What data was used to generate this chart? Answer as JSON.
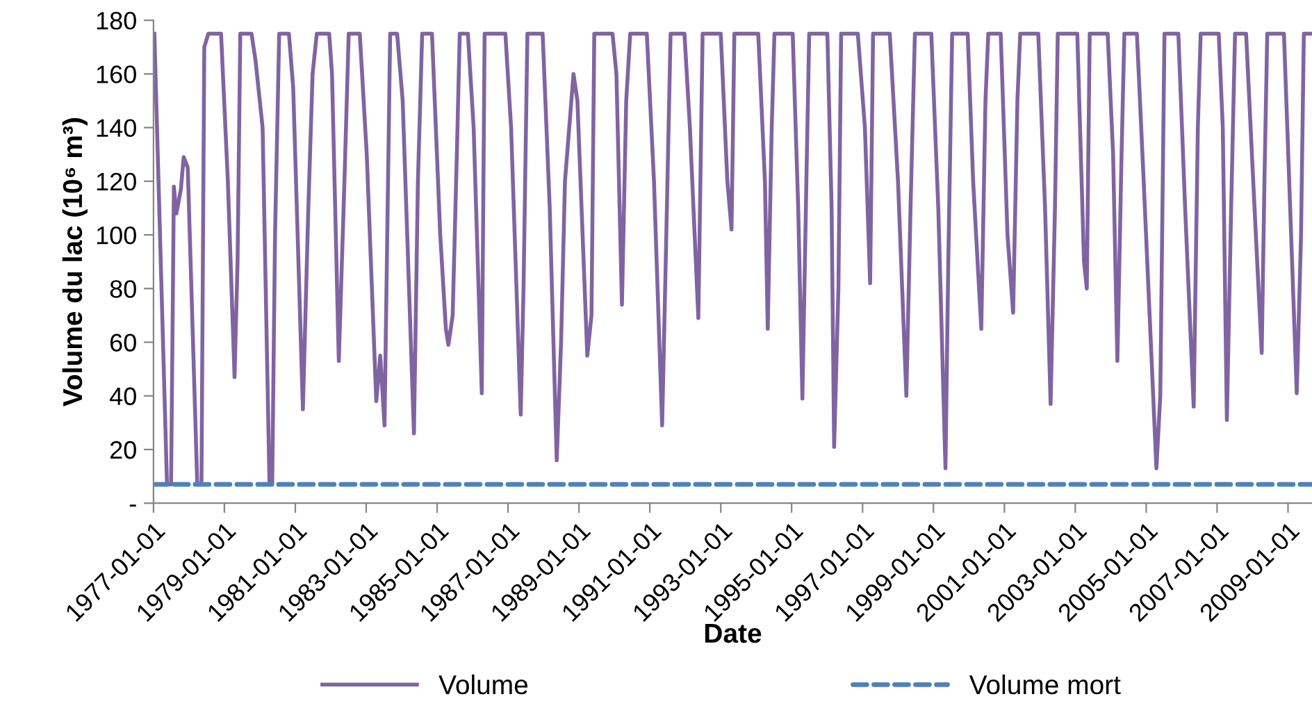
{
  "chart_data": {
    "type": "line",
    "xlabel": "Date",
    "ylabel": "Volume du lac (10⁶ m³)",
    "xlim": [
      "1977-01-01",
      "2009-09-05"
    ],
    "xticks": [
      {
        "value": "1977-01-01",
        "label": "1977-01-01"
      },
      {
        "value": "1979-01-01",
        "label": "1979-01-01"
      },
      {
        "value": "1981-01-01",
        "label": "1981-01-01"
      },
      {
        "value": "1983-01-01",
        "label": "1983-01-01"
      },
      {
        "value": "1985-01-01",
        "label": "1985-01-01"
      },
      {
        "value": "1987-01-01",
        "label": "1987-01-01"
      },
      {
        "value": "1989-01-01",
        "label": "1989-01-01"
      },
      {
        "value": "1991-01-01",
        "label": "1991-01-01"
      },
      {
        "value": "1993-01-01",
        "label": "1993-01-01"
      },
      {
        "value": "1995-01-01",
        "label": "1995-01-01"
      },
      {
        "value": "1997-01-01",
        "label": "1997-01-01"
      },
      {
        "value": "1999-01-01",
        "label": "1999-01-01"
      },
      {
        "value": "2001-01-01",
        "label": "2001-01-01"
      },
      {
        "value": "2003-01-01",
        "label": "2003-01-01"
      },
      {
        "value": "2005-01-01",
        "label": "2005-01-01"
      },
      {
        "value": "2007-01-01",
        "label": "2007-01-01"
      },
      {
        "value": "2009-01-01",
        "label": "2009-01-01"
      }
    ],
    "ylim": [
      0,
      180
    ],
    "yticks": [
      {
        "value": 0,
        "label": "-"
      },
      20,
      40,
      60,
      80,
      100,
      120,
      140,
      160,
      180
    ],
    "grid": false,
    "legend": "bottom",
    "marker": "none",
    "series": [
      {
        "name": "Volume",
        "color": "#8064a2",
        "line_style": "solid",
        "x": [
          "1977-01-10",
          "1977-05-20",
          "1977-07-01",
          "1977-07-30",
          "1977-08-25",
          "1977-10-10",
          "1977-11-08",
          "1977-12-20",
          "1978-03-28",
          "1978-05-10",
          "1978-06-08",
          "1978-07-20",
          "1978-11-28",
          "1979-02-06",
          "1979-04-16",
          "1979-05-17",
          "1979-06-14",
          "1979-10-08",
          "1979-11-18",
          "1980-01-30",
          "1980-04-10",
          "1980-05-08",
          "1980-06-06",
          "1980-07-19",
          "1980-10-27",
          "1980-12-10",
          "1981-03-20",
          "1981-05-15",
          "1981-06-28",
          "1981-08-10",
          "1981-12-16",
          "1982-01-14",
          "1982-03-25",
          "1982-05-22",
          "1982-07-05",
          "1982-10-27",
          "1983-01-07",
          "1983-04-15",
          "1983-05-26",
          "1983-07-09",
          "1983-09-05",
          "1983-11-16",
          "1984-01-12",
          "1984-05-07",
          "1984-06-17",
          "1984-07-31",
          "1984-11-09",
          "1985-02-02",
          "1985-04-01",
          "1985-04-27",
          "1985-06-10",
          "1985-07-23",
          "1985-08-22",
          "1985-11-14",
          "1986-01-12",
          "1986-04-06",
          "1986-05-05",
          "1986-12-05",
          "1987-02-02",
          "1987-05-12",
          "1987-06-10",
          "1987-07-20",
          "1987-12-24",
          "1988-03-06",
          "1988-05-17",
          "1988-07-01",
          "1988-08-10",
          "1988-11-06",
          "1988-12-16",
          "1989-03-28",
          "1989-05-10",
          "1989-06-08",
          "1989-12-13",
          "1990-01-22",
          "1990-03-20",
          "1990-05-03",
          "1990-06-13",
          "1990-12-01",
          "1991-02-13",
          "1991-05-08",
          "1991-06-20",
          "1991-08-03",
          "1991-12-24",
          "1992-02-18",
          "1992-05-15",
          "1992-06-28",
          "1993-01-01",
          "1993-03-10",
          "1993-04-22",
          "1993-05-21",
          "1994-01-22",
          "1994-04-01",
          "1994-04-30",
          "1994-06-10",
          "1994-07-08",
          "1995-01-12",
          "1995-03-10",
          "1995-04-22",
          "1995-06-02",
          "1995-07-01",
          "1996-01-04",
          "1996-02-17",
          "1996-03-14",
          "1996-04-27",
          "1996-05-25",
          "1996-11-13",
          "1997-01-25",
          "1997-03-20",
          "1997-04-19",
          "1997-10-08",
          "1998-01-01",
          "1998-03-28",
          "1998-05-10",
          "1998-06-24",
          "1998-12-10",
          "1999-02-20",
          "1999-05-05",
          "1999-06-03",
          "1999-07-13",
          "1999-12-20",
          "2000-02-14",
          "2000-05-08",
          "2000-06-20",
          "2000-07-19",
          "2000-11-24",
          "2001-02-02",
          "2001-04-01",
          "2001-05-15",
          "2001-06-13",
          "2001-12-16",
          "2002-02-24",
          "2002-04-22",
          "2002-06-06",
          "2002-07-05",
          "2003-01-22",
          "2003-04-01",
          "2003-04-30",
          "2003-05-30",
          "2003-12-01",
          "2004-01-26",
          "2004-03-10",
          "2004-04-22",
          "2004-05-21",
          "2004-09-27",
          "2004-12-06",
          "2005-04-16",
          "2005-05-26",
          "2005-07-08",
          "2005-11-28",
          "2006-02-06",
          "2006-05-05",
          "2006-06-17",
          "2006-07-16",
          "2007-01-18",
          "2007-03-01",
          "2007-04-12",
          "2007-05-26",
          "2007-07-05",
          "2007-10-27",
          "2008-01-22",
          "2008-04-05",
          "2008-05-03",
          "2008-06-01",
          "2008-11-20",
          "2009-02-02",
          "2009-04-01",
          "2009-05-15",
          "2009-06-13",
          "2009-09-05"
        ],
        "values": [
          175,
          7,
          7,
          118,
          108,
          117,
          129,
          125,
          7,
          7,
          170,
          175,
          175,
          120,
          47,
          90,
          175,
          175,
          165,
          140,
          7,
          7,
          100,
          175,
          175,
          155,
          35,
          110,
          160,
          175,
          175,
          160,
          53,
          120,
          175,
          175,
          130,
          38,
          55,
          29,
          175,
          175,
          150,
          26,
          120,
          175,
          175,
          100,
          65,
          59,
          70,
          130,
          175,
          175,
          140,
          41,
          175,
          175,
          140,
          33,
          80,
          175,
          175,
          110,
          16,
          60,
          120,
          160,
          150,
          55,
          70,
          175,
          175,
          160,
          74,
          150,
          175,
          175,
          120,
          29,
          100,
          175,
          175,
          140,
          69,
          175,
          175,
          120,
          102,
          175,
          175,
          120,
          65,
          140,
          175,
          175,
          110,
          39,
          120,
          175,
          175,
          110,
          21,
          80,
          175,
          175,
          140,
          82,
          175,
          175,
          120,
          40,
          110,
          175,
          175,
          110,
          13,
          90,
          175,
          175,
          120,
          65,
          150,
          175,
          175,
          100,
          71,
          150,
          175,
          175,
          110,
          37,
          110,
          175,
          175,
          90,
          80,
          175,
          175,
          130,
          53,
          130,
          175,
          175,
          120,
          13,
          40,
          175,
          175,
          110,
          36,
          140,
          175,
          175,
          140,
          31,
          110,
          175,
          175,
          110,
          56,
          120,
          175,
          175,
          100,
          41,
          100,
          175,
          175
        ]
      },
      {
        "name": "Volume mort",
        "color": "#4f81bd",
        "line_style": "dashed",
        "x": [
          "1977-01-01",
          "2009-09-05"
        ],
        "values": [
          7,
          7
        ]
      }
    ]
  }
}
